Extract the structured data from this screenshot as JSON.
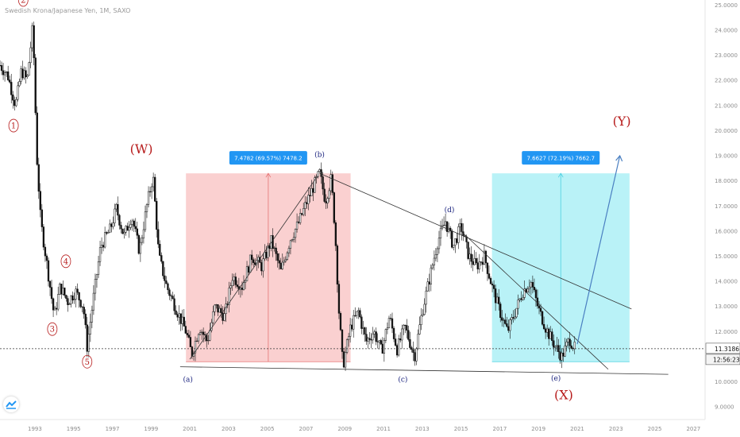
{
  "title": "Swedish Krona/Japanese Yen, 1M, SAXO",
  "chart_data": {
    "type": "candlestick",
    "title": "Swedish Krona/Japanese Yen, 1M, SAXO",
    "x_tick_labels": [
      "1993",
      "1995",
      "1997",
      "1999",
      "2001",
      "2003",
      "2005",
      "2007",
      "2009",
      "2011",
      "2013",
      "2015",
      "2017",
      "2019",
      "2021",
      "2023",
      "2025",
      "2027"
    ],
    "y_tick_labels": [
      "9.0000",
      "10.0000",
      "11.0000",
      "12.0000",
      "13.0000",
      "14.0000",
      "15.0000",
      "16.0000",
      "17.0000",
      "18.0000",
      "19.0000",
      "20.0000",
      "21.0000",
      "22.0000",
      "23.0000",
      "24.0000",
      "25.0000"
    ],
    "ylim": [
      8.5,
      25.2
    ],
    "xlim": [
      1991.2,
      2027.6
    ],
    "price_path": [
      [
        1991.2,
        22.6
      ],
      [
        1991.6,
        22.2
      ],
      [
        1992.0,
        21.0
      ],
      [
        1992.3,
        22.4
      ],
      [
        1992.6,
        22.0
      ],
      [
        1992.9,
        24.2
      ],
      [
        1993.1,
        19.0
      ],
      [
        1993.3,
        16.4
      ],
      [
        1993.6,
        14.8
      ],
      [
        1994.0,
        12.6
      ],
      [
        1994.3,
        13.8
      ],
      [
        1994.7,
        13.2
      ],
      [
        1995.1,
        13.6
      ],
      [
        1995.5,
        13.0
      ],
      [
        1995.7,
        11.4
      ],
      [
        1996.0,
        13.2
      ],
      [
        1996.4,
        15.4
      ],
      [
        1996.9,
        16.1
      ],
      [
        1997.2,
        16.9
      ],
      [
        1997.6,
        15.8
      ],
      [
        1998.0,
        16.6
      ],
      [
        1998.4,
        15.2
      ],
      [
        1998.8,
        17.1
      ],
      [
        1999.1,
        18.2
      ],
      [
        1999.4,
        15.0
      ],
      [
        1999.8,
        13.8
      ],
      [
        2000.3,
        12.9
      ],
      [
        2000.8,
        12.0
      ],
      [
        2001.1,
        11.1
      ],
      [
        2001.5,
        12.2
      ],
      [
        2001.9,
        11.6
      ],
      [
        2002.3,
        13.0
      ],
      [
        2002.8,
        12.6
      ],
      [
        2003.2,
        14.2
      ],
      [
        2003.7,
        13.8
      ],
      [
        2004.2,
        15.0
      ],
      [
        2004.7,
        14.6
      ],
      [
        2005.2,
        15.6
      ],
      [
        2005.7,
        14.4
      ],
      [
        2006.2,
        15.7
      ],
      [
        2006.6,
        16.3
      ],
      [
        2007.0,
        17.1
      ],
      [
        2007.4,
        17.8
      ],
      [
        2007.7,
        18.3
      ],
      [
        2008.0,
        17.2
      ],
      [
        2008.3,
        18.1
      ],
      [
        2008.5,
        16.0
      ],
      [
        2008.7,
        12.8
      ],
      [
        2008.9,
        10.6
      ],
      [
        2009.3,
        12.2
      ],
      [
        2009.7,
        12.8
      ],
      [
        2010.1,
        11.6
      ],
      [
        2010.5,
        12.0
      ],
      [
        2010.9,
        11.2
      ],
      [
        2011.3,
        12.6
      ],
      [
        2011.7,
        11.3
      ],
      [
        2012.1,
        12.2
      ],
      [
        2012.6,
        11.0
      ],
      [
        2013.0,
        12.8
      ],
      [
        2013.4,
        14.2
      ],
      [
        2013.8,
        15.6
      ],
      [
        2014.2,
        16.4
      ],
      [
        2014.6,
        15.4
      ],
      [
        2015.0,
        16.2
      ],
      [
        2015.4,
        15.0
      ],
      [
        2015.8,
        14.6
      ],
      [
        2016.2,
        15.0
      ],
      [
        2016.6,
        13.8
      ],
      [
        2017.0,
        12.8
      ],
      [
        2017.4,
        12.0
      ],
      [
        2017.8,
        12.8
      ],
      [
        2018.2,
        13.6
      ],
      [
        2018.6,
        14.0
      ],
      [
        2019.0,
        12.9
      ],
      [
        2019.4,
        12.1
      ],
      [
        2019.8,
        11.5
      ],
      [
        2020.2,
        11.0
      ],
      [
        2020.6,
        11.7
      ],
      [
        2020.9,
        11.3
      ]
    ],
    "current_price": "11.3186",
    "countdown": "12:56:23",
    "colors": {
      "up": "#26a69a",
      "down": "#ef5350",
      "candle": "#111111",
      "wave": "#b71c1c",
      "wave_small": "#1a237e",
      "measure_red": "#f5a9a9",
      "measure_cyan": "#80e8f0",
      "label_blue": "#2196f3"
    },
    "annotations": {
      "waves_major": [
        "2",
        "1",
        "4",
        "3",
        "5"
      ],
      "waves_wxy": [
        "(W)",
        "(X)",
        "(Y)"
      ],
      "waves_abcde": [
        "(a)",
        "(b)",
        "(c)",
        "(d)",
        "(e)"
      ]
    },
    "measurements": [
      {
        "label": "7.4782 (69.57%) 7478.2",
        "from_year": 2000.8,
        "to_year": 2009.3,
        "low": 10.8,
        "high": 18.3
      },
      {
        "label": "7.6627 (72.19%) 7662.7",
        "from_year": 2016.6,
        "to_year": 2023.7,
        "low": 10.8,
        "high": 18.3
      }
    ]
  }
}
